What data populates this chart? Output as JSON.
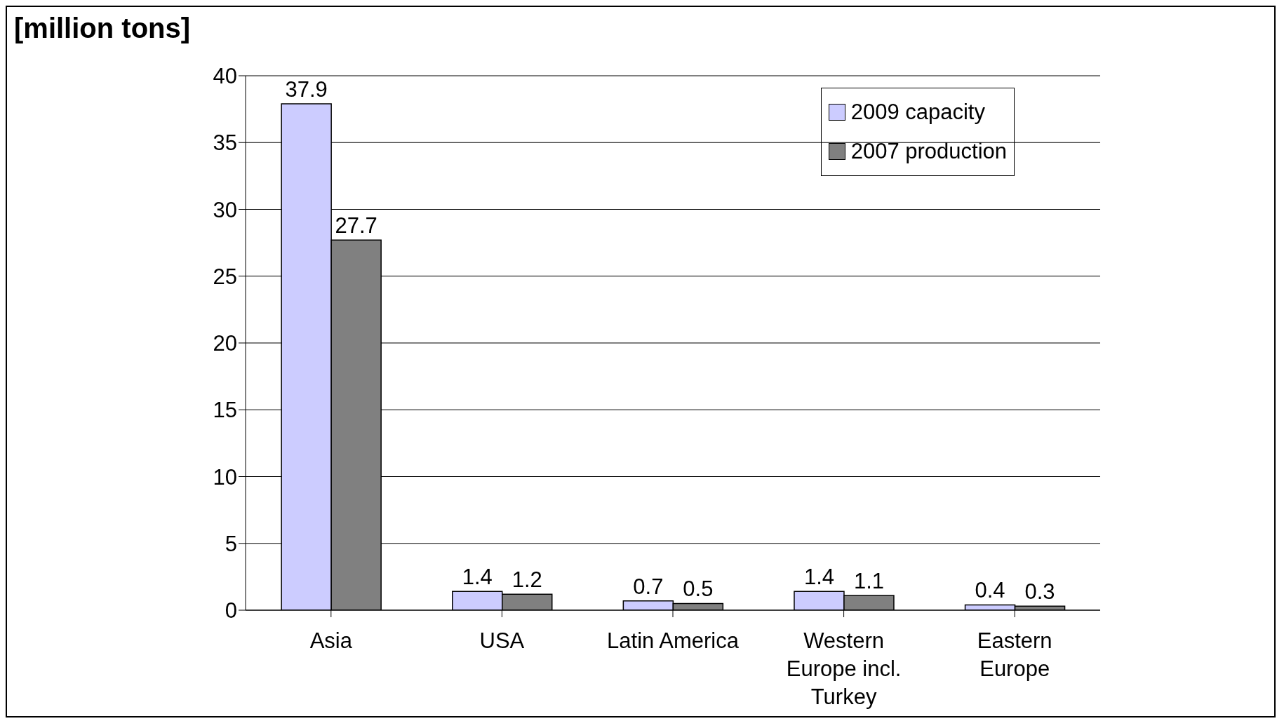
{
  "chart_data": {
    "type": "bar",
    "ylabel": "[million tons]",
    "categories": [
      "Asia",
      "USA",
      "Latin America",
      "Western Europe incl. Turkey",
      "Eastern Europe"
    ],
    "series": [
      {
        "name": "2009 capacity",
        "color": "#ccccff",
        "values": [
          37.9,
          1.4,
          0.7,
          1.4,
          0.4
        ]
      },
      {
        "name": "2007 production",
        "color": "#808080",
        "values": [
          27.7,
          1.2,
          0.5,
          1.1,
          0.3
        ]
      }
    ],
    "ylim": [
      0,
      40
    ],
    "yticks": [
      0,
      5,
      10,
      15,
      20,
      25,
      30,
      35,
      40
    ],
    "grid": "y",
    "legend": "top right",
    "data_labels": true
  }
}
